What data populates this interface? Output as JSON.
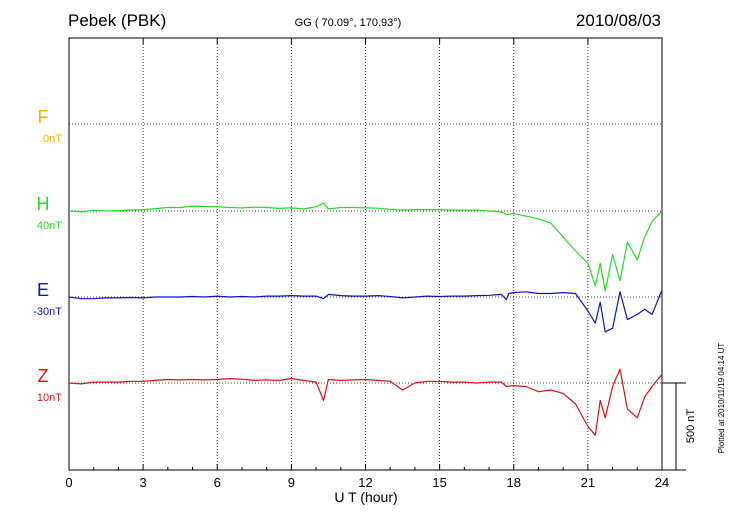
{
  "header": {
    "station": "Pebek (PBK)",
    "coords": "GG ( 70.09°, 170.93°)",
    "date": "2010/08/03"
  },
  "footer": {
    "plotted": "Plotted at 2010/11/19 04:14 UT"
  },
  "chart_data": {
    "type": "line",
    "xlabel": "U T (hour)",
    "xlim": [
      0,
      24
    ],
    "xticks": [
      0,
      3,
      6,
      9,
      12,
      15,
      18,
      21,
      24
    ],
    "xtick_labels": [
      "0",
      "3",
      "6",
      "9",
      "12",
      "15",
      "18",
      "21",
      "24"
    ],
    "grid": true,
    "scale_bar": {
      "label": "500 nT",
      "value_nT": 500
    },
    "colors": {
      "F": "#ffaa00",
      "H": "#22dd22",
      "E": "#1111cc",
      "Z": "#dd1111"
    },
    "series": [
      {
        "name": "F",
        "offset": "0nT",
        "x": [],
        "values": []
      },
      {
        "name": "H",
        "offset": "40nT",
        "x": [
          0,
          0.5,
          1,
          1.5,
          2,
          2.5,
          3,
          3.5,
          4,
          4.5,
          5,
          5.5,
          6,
          6.5,
          7,
          7.5,
          8,
          8.5,
          9,
          9.5,
          10,
          10.3,
          10.5,
          11,
          11.5,
          12,
          12.5,
          13,
          13.5,
          14,
          14.5,
          15,
          15.5,
          16,
          16.5,
          17,
          17.5,
          17.7,
          18,
          18.5,
          19,
          19.5,
          20,
          20.5,
          21,
          21.3,
          21.5,
          21.7,
          22,
          22.3,
          22.6,
          23,
          23.3,
          23.6,
          24
        ],
        "values": [
          0,
          -5,
          5,
          0,
          3,
          6,
          8,
          14,
          20,
          20,
          28,
          26,
          25,
          20,
          18,
          22,
          20,
          15,
          18,
          12,
          24,
          45,
          12,
          20,
          20,
          18,
          16,
          10,
          5,
          8,
          8,
          8,
          5,
          5,
          5,
          0,
          -5,
          -20,
          -15,
          -30,
          -45,
          -70,
          -150,
          -230,
          -300,
          -430,
          -300,
          -460,
          -250,
          -400,
          -180,
          -280,
          -150,
          -60,
          0
        ]
      },
      {
        "name": "E",
        "offset": "-30nT",
        "x": [
          0,
          0.5,
          1,
          1.5,
          2,
          2.5,
          3,
          3.5,
          4,
          4.5,
          5,
          5.5,
          6,
          6.5,
          7,
          7.5,
          8,
          8.5,
          9,
          9.5,
          10,
          10.3,
          10.5,
          11,
          11.5,
          12,
          12.5,
          13,
          13.5,
          14,
          14.5,
          15,
          15.5,
          16,
          16.5,
          17,
          17.5,
          17.7,
          17.8,
          18,
          18.5,
          19,
          19.5,
          20,
          20.5,
          21,
          21.3,
          21.5,
          21.7,
          22,
          22.3,
          22.6,
          23,
          23.3,
          23.6,
          24
        ],
        "values": [
          0,
          -10,
          -10,
          -5,
          -5,
          -3,
          -5,
          0,
          0,
          0,
          3,
          0,
          5,
          0,
          3,
          0,
          5,
          5,
          8,
          5,
          5,
          -10,
          15,
          8,
          5,
          5,
          8,
          3,
          -5,
          0,
          5,
          3,
          5,
          5,
          8,
          10,
          15,
          -15,
          20,
          25,
          30,
          20,
          20,
          25,
          20,
          -80,
          -150,
          -30,
          -200,
          -180,
          30,
          -130,
          -100,
          -70,
          -100,
          40
        ]
      },
      {
        "name": "Z",
        "offset": "10nT",
        "x": [
          0,
          0.5,
          1,
          1.5,
          2,
          2.5,
          3,
          3.5,
          4,
          4.5,
          5,
          5.5,
          6,
          6.5,
          7,
          7.5,
          8,
          8.5,
          9,
          9.5,
          10,
          10.3,
          10.5,
          11,
          11.5,
          12,
          12.5,
          13,
          13.5,
          14,
          14.5,
          15,
          15.5,
          16,
          16.5,
          17,
          17.5,
          17.7,
          18,
          18.5,
          19,
          19.5,
          20,
          20.5,
          21,
          21.3,
          21.5,
          21.7,
          22,
          22.3,
          22.6,
          23,
          23.3,
          23.6,
          24
        ],
        "values": [
          0,
          -5,
          5,
          5,
          5,
          10,
          10,
          15,
          20,
          18,
          20,
          18,
          20,
          25,
          22,
          15,
          18,
          15,
          25,
          15,
          5,
          -100,
          20,
          15,
          18,
          20,
          15,
          10,
          -40,
          0,
          10,
          10,
          5,
          5,
          0,
          5,
          5,
          -20,
          -15,
          -20,
          -50,
          -40,
          -60,
          -120,
          -250,
          -300,
          -100,
          -200,
          -20,
          80,
          -150,
          -200,
          -80,
          -20,
          50
        ]
      }
    ]
  }
}
